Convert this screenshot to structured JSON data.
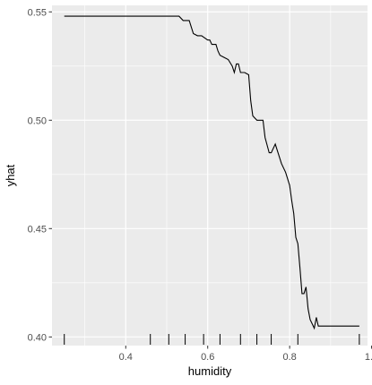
{
  "chart_data": {
    "type": "line",
    "xlabel": "humidity",
    "ylabel": "yhat",
    "xlim": [
      0.22,
      0.99
    ],
    "ylim": [
      0.396,
      0.553
    ],
    "x_ticks": [
      0.4,
      0.6,
      0.8,
      1.0
    ],
    "x_tick_labels": [
      "0.4",
      "0.6",
      "0.8",
      "1.0"
    ],
    "y_ticks": [
      0.4,
      0.45,
      0.5,
      0.55
    ],
    "y_tick_labels": [
      "0.40",
      "0.45",
      "0.50",
      "0.55"
    ],
    "grid": true,
    "legend": "none",
    "colors": {
      "panel": "#ebebeb",
      "grid": "#ffffff",
      "line": "#000000"
    },
    "series": [
      {
        "x": [
          0.25,
          0.3,
          0.35,
          0.4,
          0.45,
          0.5,
          0.53,
          0.54,
          0.555,
          0.565,
          0.575,
          0.585,
          0.6,
          0.605,
          0.61,
          0.62,
          0.625,
          0.63,
          0.64,
          0.65,
          0.66,
          0.665,
          0.67,
          0.675,
          0.68,
          0.685,
          0.69,
          0.7,
          0.705,
          0.71,
          0.715,
          0.72,
          0.735,
          0.74,
          0.75,
          0.755,
          0.765,
          0.77,
          0.78,
          0.79,
          0.8,
          0.805,
          0.81,
          0.815,
          0.82,
          0.825,
          0.83,
          0.835,
          0.84,
          0.845,
          0.85,
          0.855,
          0.86,
          0.865,
          0.87,
          0.88,
          0.9,
          0.92,
          0.94,
          0.97
        ],
        "y": [
          0.548,
          0.548,
          0.548,
          0.548,
          0.548,
          0.548,
          0.548,
          0.546,
          0.546,
          0.54,
          0.539,
          0.539,
          0.537,
          0.537,
          0.535,
          0.535,
          0.532,
          0.53,
          0.529,
          0.528,
          0.525,
          0.522,
          0.526,
          0.526,
          0.522,
          0.522,
          0.522,
          0.521,
          0.509,
          0.502,
          0.501,
          0.5,
          0.5,
          0.492,
          0.485,
          0.485,
          0.489,
          0.486,
          0.48,
          0.476,
          0.47,
          0.463,
          0.457,
          0.446,
          0.443,
          0.432,
          0.42,
          0.42,
          0.423,
          0.413,
          0.408,
          0.406,
          0.404,
          0.409,
          0.405,
          0.405,
          0.405,
          0.405,
          0.405,
          0.405
        ]
      }
    ],
    "rug": [
      0.25,
      0.46,
      0.505,
      0.545,
      0.59,
      0.63,
      0.68,
      0.72,
      0.755,
      0.82,
      0.97
    ]
  }
}
